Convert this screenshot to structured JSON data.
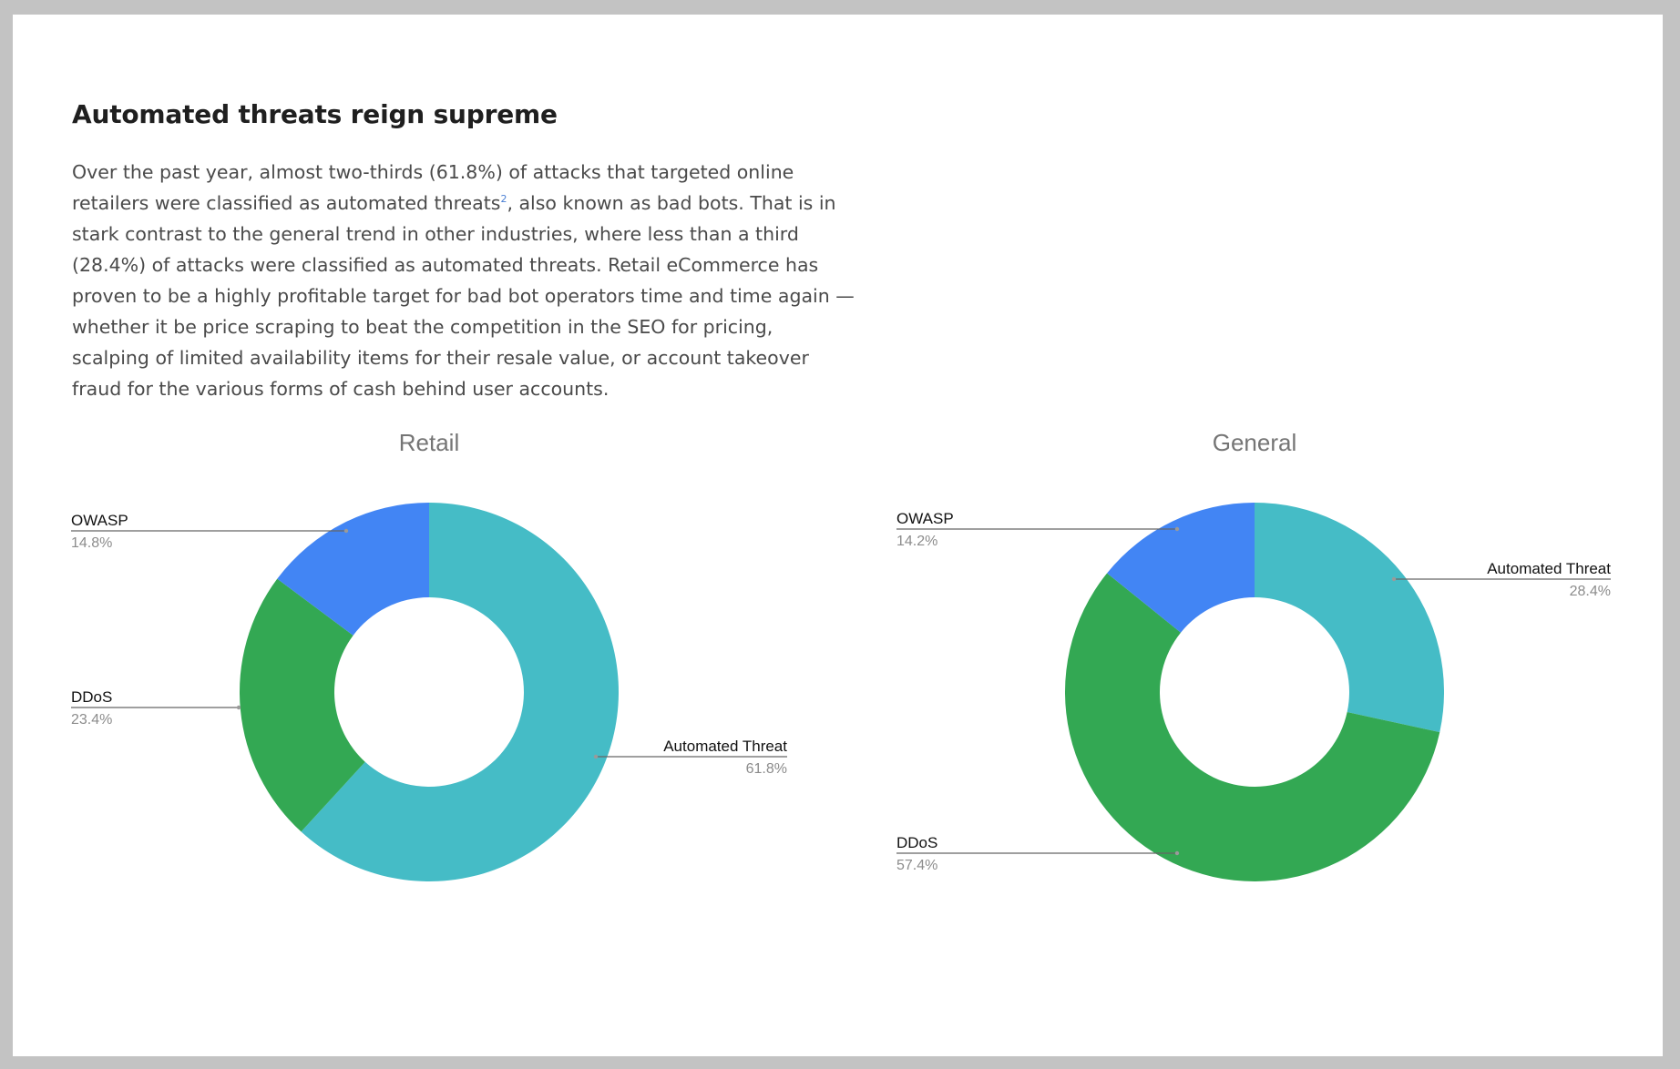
{
  "article": {
    "title": "Automated threats reign supreme",
    "body_part1": "Over the past year, almost two-thirds (61.8%) of attacks that targeted online retailers were classified as automated threats",
    "footnote_ref": "2",
    "body_part2": ", also known as bad bots. That is in stark contrast to the general trend in other industries, where less than a third (28.4%) of attacks were classified as automated threats. Retail eCommerce has proven to be a highly profitable target for bad bot operators time and time again — whether it be price scraping to beat the competition in the SEO for pricing, scalping of limited availability items for their resale value, or account takeover fraud for the various forms of cash behind user accounts."
  },
  "colors": {
    "automated_threat": "#45bcc6",
    "ddos": "#33a853",
    "owasp": "#4285f4",
    "chart_title": "#757575",
    "leader_line": "#666666"
  },
  "chart_data": [
    {
      "type": "pie",
      "title": "Retail",
      "slices": [
        {
          "label": "Automated Threat",
          "value": 61.8,
          "display": "61.8%",
          "color": "#45bcc6"
        },
        {
          "label": "DDoS",
          "value": 23.4,
          "display": "23.4%",
          "color": "#33a853"
        },
        {
          "label": "OWASP",
          "value": 14.8,
          "display": "14.8%",
          "color": "#4285f4"
        }
      ],
      "donut": true,
      "legend": "labeled leader lines"
    },
    {
      "type": "pie",
      "title": "General",
      "slices": [
        {
          "label": "Automated Threat",
          "value": 28.4,
          "display": "28.4%",
          "color": "#45bcc6"
        },
        {
          "label": "DDoS",
          "value": 57.4,
          "display": "57.4%",
          "color": "#33a853"
        },
        {
          "label": "OWASP",
          "value": 14.2,
          "display": "14.2%",
          "color": "#4285f4"
        }
      ],
      "donut": true,
      "legend": "labeled leader lines"
    }
  ]
}
